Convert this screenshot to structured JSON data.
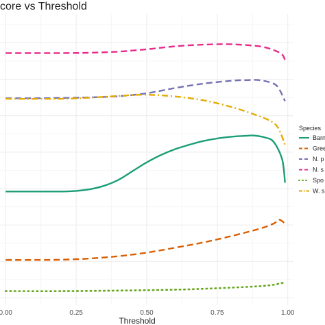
{
  "chart_data": {
    "type": "line",
    "title": "score vs Threshold",
    "xlabel": "Threshold",
    "ylabel": "",
    "xlim": [
      -0.02,
      1.02
    ],
    "x_ticks": [
      0.0,
      0.25,
      0.5,
      0.75,
      1.0
    ],
    "x_tick_labels": [
      "0.00",
      "0.25",
      "0.50",
      "0.75",
      "1.00"
    ],
    "ylim": [
      0,
      1
    ],
    "grid": true,
    "legend_position": "right",
    "legend_title": "Species",
    "series": [
      {
        "name": "Barn",
        "color": "#1b9e77",
        "dash": "solid",
        "points": [
          [
            0.0,
            0.39
          ],
          [
            0.1,
            0.39
          ],
          [
            0.2,
            0.39
          ],
          [
            0.25,
            0.392
          ],
          [
            0.3,
            0.398
          ],
          [
            0.35,
            0.41
          ],
          [
            0.4,
            0.43
          ],
          [
            0.45,
            0.46
          ],
          [
            0.5,
            0.49
          ],
          [
            0.55,
            0.515
          ],
          [
            0.6,
            0.535
          ],
          [
            0.65,
            0.55
          ],
          [
            0.7,
            0.563
          ],
          [
            0.75,
            0.572
          ],
          [
            0.8,
            0.578
          ],
          [
            0.85,
            0.581
          ],
          [
            0.88,
            0.582
          ],
          [
            0.92,
            0.575
          ],
          [
            0.95,
            0.56
          ],
          [
            0.98,
            0.5
          ],
          [
            0.99,
            0.42
          ]
        ]
      },
      {
        "name": "Gree",
        "color": "#d95f02",
        "dash": "dashed",
        "points": [
          [
            0.0,
            0.155
          ],
          [
            0.1,
            0.155
          ],
          [
            0.2,
            0.156
          ],
          [
            0.3,
            0.16
          ],
          [
            0.4,
            0.168
          ],
          [
            0.5,
            0.18
          ],
          [
            0.6,
            0.197
          ],
          [
            0.7,
            0.215
          ],
          [
            0.8,
            0.237
          ],
          [
            0.9,
            0.262
          ],
          [
            0.95,
            0.28
          ],
          [
            0.97,
            0.293
          ],
          [
            0.99,
            0.28
          ]
        ]
      },
      {
        "name": "N. p",
        "color": "#7570b3",
        "dash": "dashed",
        "points": [
          [
            0.0,
            0.71
          ],
          [
            0.1,
            0.71
          ],
          [
            0.2,
            0.711
          ],
          [
            0.3,
            0.713
          ],
          [
            0.4,
            0.717
          ],
          [
            0.5,
            0.727
          ],
          [
            0.6,
            0.745
          ],
          [
            0.7,
            0.76
          ],
          [
            0.8,
            0.77
          ],
          [
            0.85,
            0.772
          ],
          [
            0.9,
            0.772
          ],
          [
            0.95,
            0.76
          ],
          [
            0.97,
            0.74
          ],
          [
            0.99,
            0.7
          ]
        ]
      },
      {
        "name": "N. s",
        "color": "#e7298a",
        "dash": "dashed",
        "points": [
          [
            0.0,
            0.865
          ],
          [
            0.2,
            0.865
          ],
          [
            0.3,
            0.866
          ],
          [
            0.4,
            0.87
          ],
          [
            0.5,
            0.878
          ],
          [
            0.6,
            0.888
          ],
          [
            0.7,
            0.894
          ],
          [
            0.8,
            0.895
          ],
          [
            0.9,
            0.888
          ],
          [
            0.95,
            0.875
          ],
          [
            0.98,
            0.86
          ],
          [
            0.99,
            0.84
          ]
        ]
      },
      {
        "name": "Spo",
        "color": "#66a61e",
        "dash": "dotted",
        "points": [
          [
            0.0,
            0.048
          ],
          [
            0.2,
            0.048
          ],
          [
            0.4,
            0.05
          ],
          [
            0.6,
            0.053
          ],
          [
            0.7,
            0.056
          ],
          [
            0.8,
            0.06
          ],
          [
            0.9,
            0.065
          ],
          [
            0.95,
            0.07
          ],
          [
            0.99,
            0.078
          ]
        ]
      },
      {
        "name": "W. s",
        "color": "#e6ab02",
        "dash": "dashdot",
        "points": [
          [
            0.0,
            0.708
          ],
          [
            0.2,
            0.708
          ],
          [
            0.3,
            0.712
          ],
          [
            0.4,
            0.718
          ],
          [
            0.5,
            0.722
          ],
          [
            0.6,
            0.716
          ],
          [
            0.7,
            0.703
          ],
          [
            0.8,
            0.68
          ],
          [
            0.9,
            0.648
          ],
          [
            0.95,
            0.625
          ],
          [
            0.97,
            0.6
          ],
          [
            0.99,
            0.55
          ]
        ]
      }
    ]
  }
}
